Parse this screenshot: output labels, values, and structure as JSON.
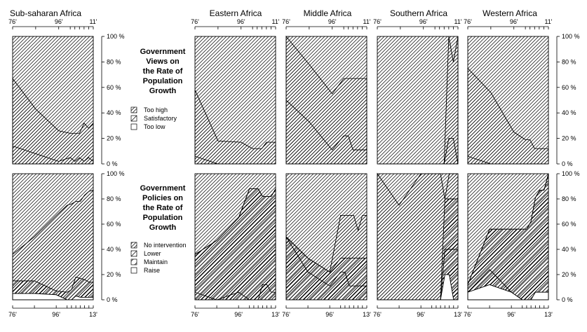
{
  "panel_titles": [
    "Sub-saharan Africa",
    "Eastern Africa",
    "Middle Africa",
    "Southern Africa",
    "Western Africa"
  ],
  "views_block": {
    "title_lines": [
      "Government",
      "Views on",
      "the Rate of",
      "Population",
      "Growth"
    ],
    "legend": [
      "Too high",
      "Satisfactory",
      "Too low"
    ]
  },
  "policies_block": {
    "title_lines": [
      "Government",
      "Policies on",
      "the Rate of",
      "Population",
      "Growth"
    ],
    "legend": [
      "No intervention",
      "Lower",
      "Maintain",
      "Raise"
    ]
  },
  "top_axis_ticks": [
    "76'",
    "96'",
    "11'"
  ],
  "bottom_axis_ticks": [
    "76'",
    "96'",
    "13'"
  ],
  "y_ticks": [
    "0 %",
    "20 %",
    "40 %",
    "60 %",
    "80 %",
    "100 %"
  ],
  "chart_data": [
    {
      "type": "area",
      "region": "Sub-saharan Africa",
      "group": "Views",
      "x": [
        1976,
        1986,
        1996,
        2001,
        2003,
        2005,
        2007,
        2009,
        2011
      ],
      "series": [
        {
          "name": "Too low",
          "values": [
            0,
            0,
            0,
            0,
            0,
            0,
            0,
            0,
            0
          ]
        },
        {
          "name": "Satisfactory",
          "values": [
            14,
            8,
            2,
            5,
            2,
            5,
            2,
            5,
            2
          ]
        },
        {
          "name": "Too high",
          "values": [
            53,
            35,
            24,
            19,
            22,
            19,
            30,
            23,
            30
          ]
        }
      ]
    },
    {
      "type": "area",
      "region": "Eastern Africa",
      "group": "Views",
      "x": [
        1976,
        1986,
        1996,
        2001,
        2003,
        2005,
        2007,
        2009,
        2011
      ],
      "series": [
        {
          "name": "Too low",
          "values": [
            0,
            0,
            0,
            0,
            0,
            0,
            0,
            0,
            0
          ]
        },
        {
          "name": "Satisfactory",
          "values": [
            6,
            0,
            0,
            0,
            0,
            0,
            0,
            0,
            0
          ]
        },
        {
          "name": "Too high",
          "values": [
            52,
            18,
            17,
            12,
            12,
            12,
            17,
            17,
            17
          ]
        }
      ]
    },
    {
      "type": "area",
      "region": "Middle Africa",
      "group": "Views",
      "x": [
        1976,
        1986,
        1996,
        2001,
        2003,
        2005,
        2007,
        2009,
        2011
      ],
      "series": [
        {
          "name": "Too low",
          "values": [
            0,
            0,
            0,
            0,
            0,
            0,
            0,
            0,
            0
          ]
        },
        {
          "name": "Satisfactory",
          "values": [
            50,
            33,
            11,
            22,
            22,
            11,
            11,
            11,
            11
          ]
        },
        {
          "name": "Too high",
          "values": [
            50,
            45,
            44,
            45,
            45,
            56,
            56,
            56,
            56
          ]
        }
      ]
    },
    {
      "type": "area",
      "region": "Southern Africa",
      "group": "Views",
      "x": [
        1976,
        1986,
        1996,
        2001,
        2003,
        2005,
        2007,
        2009,
        2011
      ],
      "series": [
        {
          "name": "Too low",
          "values": [
            0,
            0,
            0,
            0,
            0,
            0,
            0,
            0,
            0
          ]
        },
        {
          "name": "Satisfactory",
          "values": [
            0,
            0,
            0,
            0,
            0,
            0,
            20,
            20,
            0
          ]
        },
        {
          "name": "Too high",
          "values": [
            0,
            0,
            0,
            0,
            0,
            0,
            80,
            60,
            100
          ]
        }
      ]
    },
    {
      "type": "area",
      "region": "Western Africa",
      "group": "Views",
      "x": [
        1976,
        1986,
        1996,
        2001,
        2003,
        2005,
        2007,
        2009,
        2011
      ],
      "series": [
        {
          "name": "Too low",
          "values": [
            0,
            0,
            0,
            0,
            0,
            0,
            0,
            0,
            0
          ]
        },
        {
          "name": "Satisfactory",
          "values": [
            6,
            0,
            0,
            0,
            0,
            0,
            0,
            0,
            0
          ]
        },
        {
          "name": "Too high",
          "values": [
            69,
            56,
            25,
            19,
            19,
            12,
            12,
            12,
            12
          ]
        }
      ]
    },
    {
      "type": "area",
      "region": "Sub-saharan Africa",
      "group": "Policies",
      "x": [
        1976,
        1986,
        1996,
        2001,
        2003,
        2005,
        2007,
        2009,
        2011,
        2013
      ],
      "series": [
        {
          "name": "Raise",
          "values": [
            5,
            5,
            4,
            0,
            0,
            3,
            2,
            2,
            2,
            2
          ]
        },
        {
          "name": "Maintain",
          "values": [
            0,
            0,
            0,
            0,
            0,
            0,
            0,
            0,
            0,
            0
          ]
        },
        {
          "name": "Lower",
          "values": [
            10,
            10,
            3,
            6,
            8,
            15,
            15,
            14,
            12,
            12
          ]
        },
        {
          "name": "No intervention",
          "values": [
            21,
            35,
            60,
            69,
            68,
            60,
            61,
            67,
            72,
            73
          ]
        }
      ]
    },
    {
      "type": "area",
      "region": "Eastern Africa",
      "group": "Policies",
      "x": [
        1976,
        1986,
        1996,
        2001,
        2003,
        2005,
        2007,
        2009,
        2011,
        2013
      ],
      "series": [
        {
          "name": "Raise",
          "values": [
            0,
            0,
            0,
            0,
            0,
            0,
            0,
            0,
            0,
            0
          ]
        },
        {
          "name": "Maintain",
          "values": [
            6,
            0,
            6,
            0,
            0,
            0,
            12,
            12,
            6,
            6
          ]
        },
        {
          "name": "Lower",
          "values": [
            30,
            47,
            59,
            88,
            88,
            88,
            70,
            70,
            76,
            82
          ]
        },
        {
          "name": "No intervention",
          "values": [
            0,
            0,
            0,
            0,
            0,
            0,
            0,
            0,
            0,
            0
          ]
        }
      ]
    },
    {
      "type": "area",
      "region": "Middle Africa",
      "group": "Policies",
      "x": [
        1976,
        1986,
        1996,
        2001,
        2003,
        2005,
        2007,
        2009,
        2011,
        2013
      ],
      "series": [
        {
          "name": "Raise",
          "values": [
            0,
            0,
            0,
            0,
            0,
            0,
            0,
            0,
            0,
            0
          ]
        },
        {
          "name": "Maintain",
          "values": [
            50,
            22,
            11,
            22,
            22,
            11,
            11,
            11,
            11,
            11
          ]
        },
        {
          "name": "Lower",
          "values": [
            0,
            11,
            11,
            11,
            11,
            22,
            22,
            22,
            22,
            22
          ]
        },
        {
          "name": "No intervention",
          "values": [
            0,
            0,
            0,
            34,
            34,
            34,
            34,
            22,
            34,
            34
          ]
        }
      ]
    },
    {
      "type": "area",
      "region": "Southern Africa",
      "group": "Policies",
      "x": [
        1976,
        1986,
        1996,
        2001,
        2003,
        2005,
        2007,
        2009,
        2011,
        2013
      ],
      "series": [
        {
          "name": "Raise",
          "values": [
            0,
            0,
            0,
            0,
            0,
            0,
            20,
            20,
            0,
            0
          ]
        },
        {
          "name": "Maintain",
          "values": [
            0,
            0,
            0,
            0,
            0,
            0,
            20,
            20,
            40,
            40
          ]
        },
        {
          "name": "Lower",
          "values": [
            0,
            0,
            0,
            0,
            0,
            0,
            40,
            40,
            40,
            40
          ]
        },
        {
          "name": "No intervention",
          "values": [
            100,
            75,
            100,
            100,
            100,
            100,
            0,
            20,
            20,
            20
          ]
        }
      ]
    },
    {
      "type": "area",
      "region": "Western Africa",
      "group": "Policies",
      "x": [
        1976,
        1986,
        1996,
        2001,
        2003,
        2005,
        2007,
        2009,
        2011,
        2013
      ],
      "series": [
        {
          "name": "Raise",
          "values": [
            6,
            12,
            6,
            0,
            0,
            0,
            6,
            6,
            6,
            6
          ]
        },
        {
          "name": "Maintain",
          "values": [
            0,
            12,
            0,
            0,
            0,
            0,
            0,
            0,
            0,
            0
          ]
        },
        {
          "name": "Lower",
          "values": [
            6,
            32,
            50,
            56,
            56,
            62,
            75,
            81,
            81,
            94
          ]
        },
        {
          "name": "No intervention",
          "values": [
            0,
            0,
            0,
            0,
            0,
            0,
            0,
            0,
            0,
            0
          ]
        }
      ]
    }
  ]
}
